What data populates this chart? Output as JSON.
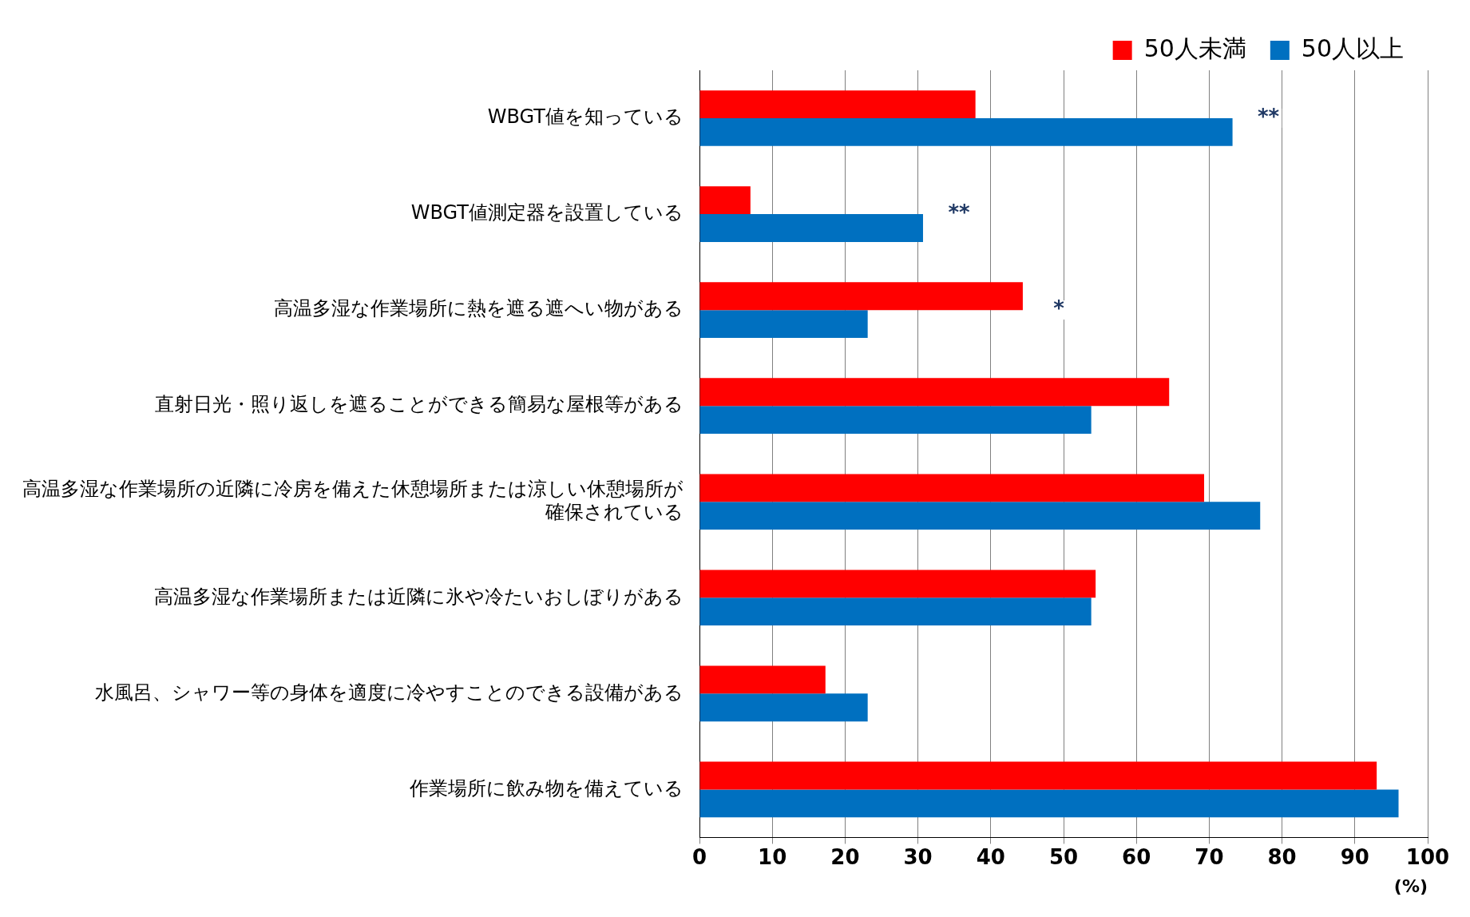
{
  "chart_data": {
    "type": "bar",
    "orientation": "horizontal",
    "categories": [
      "WBGT値を知っている",
      "WBGT値測定器を設置している",
      "高温多湿な作業場所に熱を遮る遮へい物がある",
      "直射日光・照り返しを遮ることができる簡易な屋根等がある",
      "高温多湿な作業場所の近隣に冷房を備えた休憩場所または涼しい休憩場所が確保されている",
      "高温多湿な作業場所または近隣に氷や冷たいおしぼりがある",
      "水風呂、シャワー等の身体を適度に冷やすことのできる設備がある",
      "作業場所に飲み物を備えている"
    ],
    "series": [
      {
        "name": "50人未満",
        "color": "#ff0000",
        "values": [
          37.9,
          7.0,
          44.4,
          64.5,
          69.3,
          54.4,
          17.3,
          93.0
        ]
      },
      {
        "name": "50人以上",
        "color": "#0070c0",
        "values": [
          73.2,
          30.7,
          23.1,
          53.8,
          77.0,
          53.8,
          23.1,
          96.0
        ]
      }
    ],
    "xlim": [
      0,
      100
    ],
    "xticks": [
      0,
      10,
      20,
      30,
      40,
      50,
      60,
      70,
      80,
      90,
      100
    ],
    "xlabel": "(%)",
    "grid": "x",
    "legend": "top",
    "annotations": [
      "**",
      "**",
      "*"
    ]
  }
}
